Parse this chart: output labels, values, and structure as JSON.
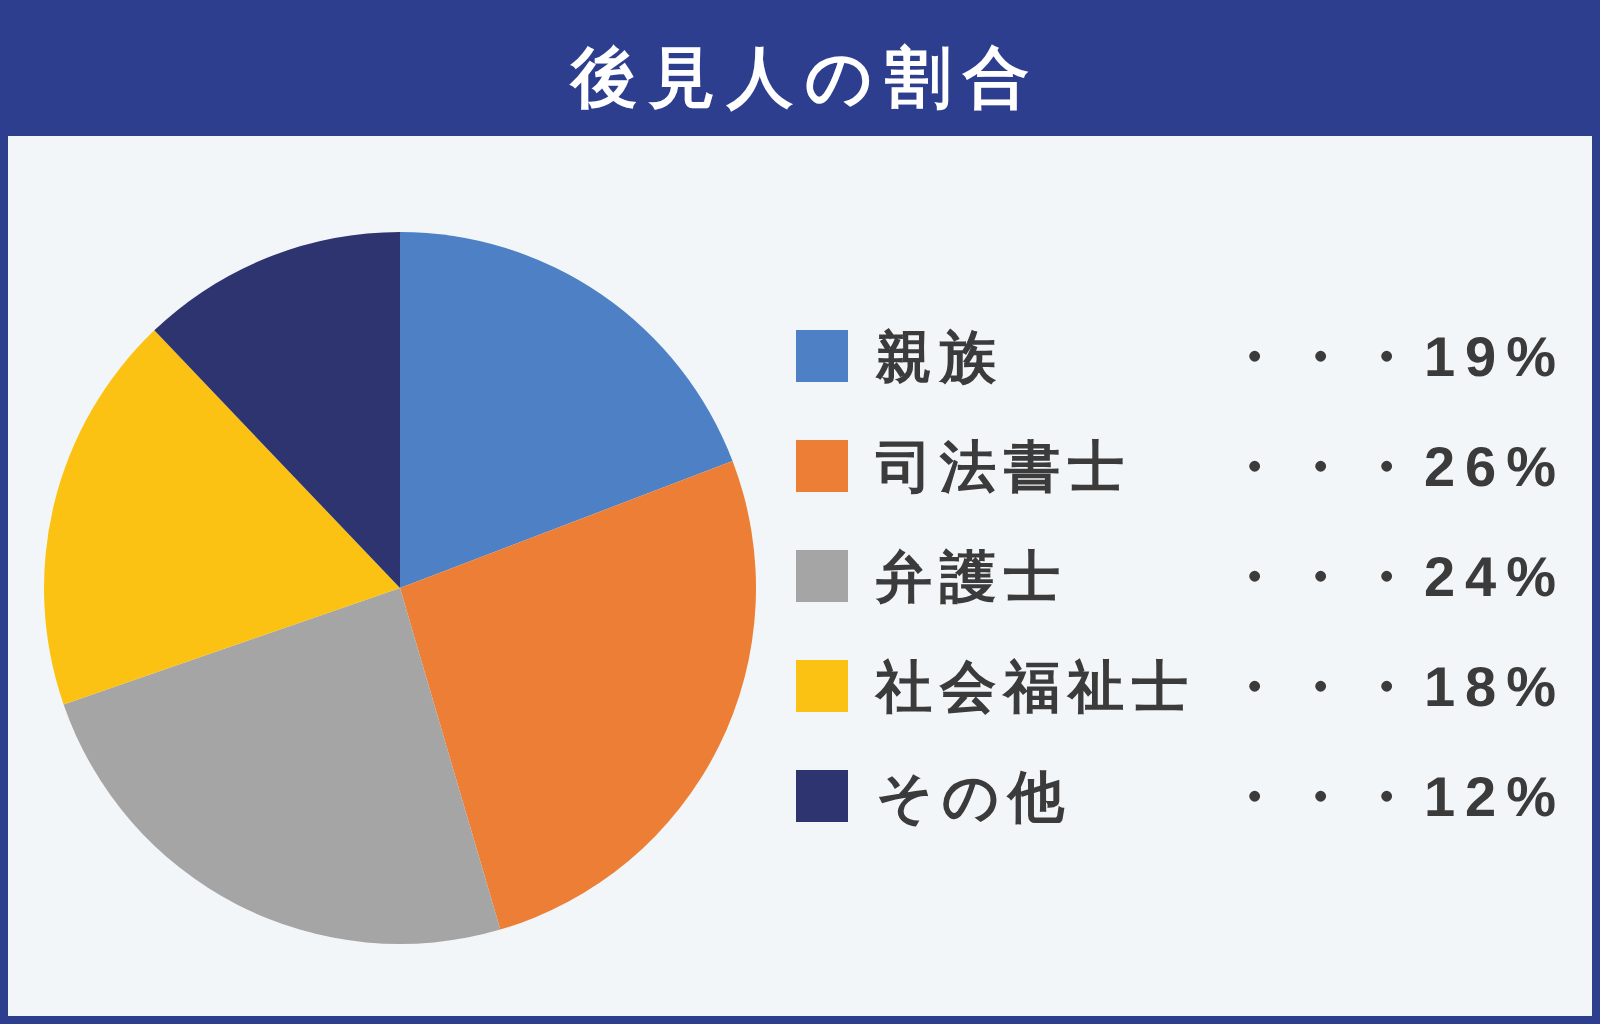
{
  "chart_data": {
    "type": "pie",
    "title": "後見人の割合",
    "categories": [
      "親族",
      "司法書士",
      "弁護士",
      "社会福祉士",
      "その他"
    ],
    "values": [
      19,
      26,
      24,
      18,
      12
    ],
    "colors": [
      "#4e80c6",
      "#ec7f35",
      "#a5a5a5",
      "#fbc213",
      "#2e346f"
    ],
    "value_labels": [
      "・・・19%",
      "・・・26%",
      "・・・24%",
      "・・・18%",
      "・・・12%"
    ],
    "legend": "right"
  }
}
